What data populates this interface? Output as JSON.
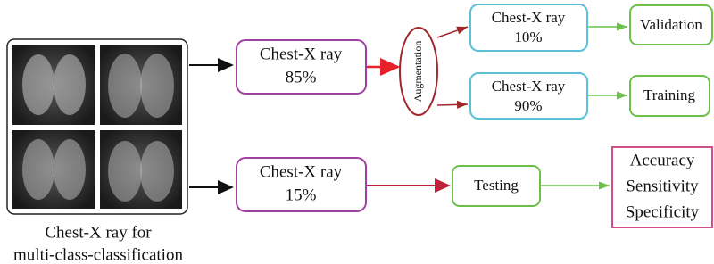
{
  "image_panel": {
    "caption": [
      "Chest-X ray for",
      "multi-class-classification"
    ]
  },
  "nodes": [
    {
      "lines": [
        "Chest-X ray",
        "85%"
      ]
    },
    {
      "lines": [
        "Augmentation"
      ]
    },
    {
      "lines": [
        "Chest-X ray",
        "10%"
      ]
    },
    {
      "lines": [
        "Chest-X ray",
        "90%"
      ]
    },
    {
      "lines": [
        "Validation"
      ]
    },
    {
      "lines": [
        "Training"
      ]
    },
    {
      "lines": [
        "Chest-X ray",
        "15%"
      ]
    },
    {
      "lines": [
        "Testing"
      ]
    },
    {
      "lines": [
        "Accuracy",
        "Sensitivity",
        "Specificity"
      ]
    }
  ]
}
